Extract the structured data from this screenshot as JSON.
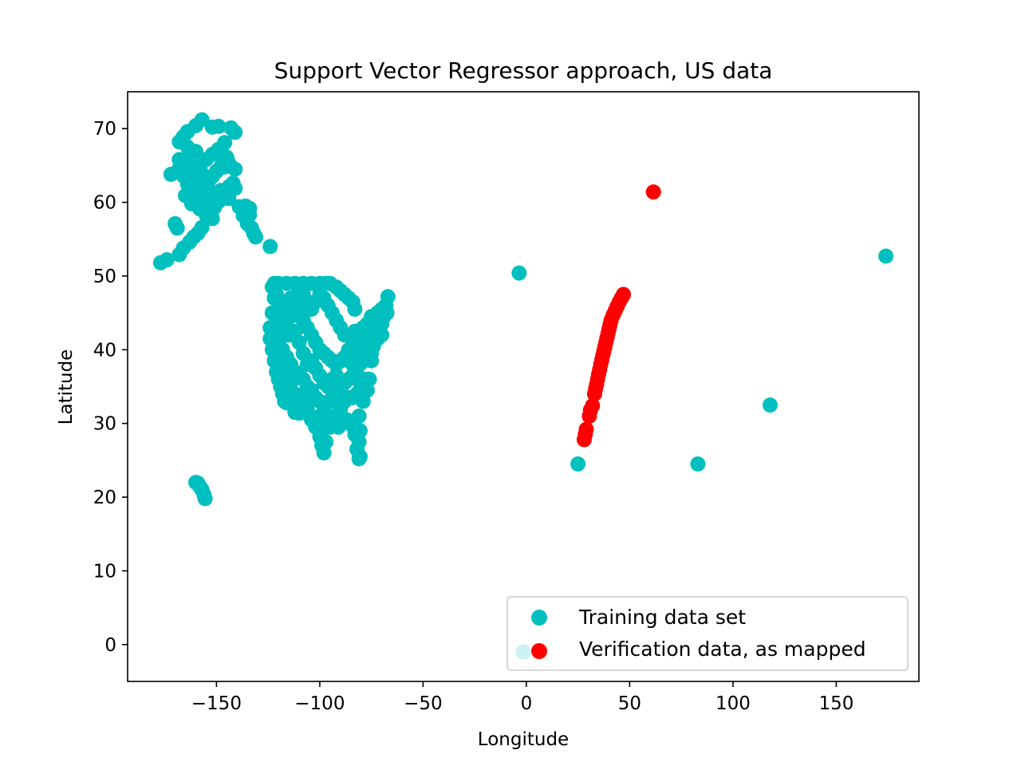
{
  "chart_data": {
    "type": "scatter",
    "title": "Support Vector Regressor approach, US data",
    "xlabel": "Longitude",
    "ylabel": "Latitude",
    "xlim": [
      -193,
      190
    ],
    "ylim": [
      -5,
      75
    ],
    "xticks": [
      -150,
      -100,
      -50,
      0,
      50,
      100,
      150
    ],
    "xtick_labels": [
      "−150",
      "−100",
      "−50",
      "0",
      "50",
      "100",
      "150"
    ],
    "yticks": [
      0,
      10,
      20,
      30,
      40,
      50,
      60,
      70
    ],
    "ytick_labels": [
      "0",
      "10",
      "20",
      "30",
      "40",
      "50",
      "60",
      "70"
    ],
    "grid": false,
    "legend_position": "lower-right",
    "series": [
      {
        "name": "Training data set",
        "color": "#00bfbf",
        "points": [
          [
            -177,
            51.8
          ],
          [
            -174,
            52.2
          ],
          [
            -168,
            52.9
          ],
          [
            -166,
            53.8
          ],
          [
            -163,
            54.6
          ],
          [
            -161,
            55.3
          ],
          [
            -159,
            55.8
          ],
          [
            -157,
            56.6
          ],
          [
            -170,
            57.1
          ],
          [
            -169,
            56.5
          ],
          [
            -172,
            63.8
          ],
          [
            -168,
            64.6
          ],
          [
            -165,
            64.5
          ],
          [
            -168,
            68.2
          ],
          [
            -166,
            68.9
          ],
          [
            -164,
            69.6
          ],
          [
            -160,
            70.4
          ],
          [
            -157,
            71.2
          ],
          [
            -152,
            70.2
          ],
          [
            -149,
            70.3
          ],
          [
            -143,
            70.1
          ],
          [
            -146,
            68.1
          ],
          [
            -141,
            69.5
          ],
          [
            -160,
            66.9
          ],
          [
            -162,
            66.3
          ],
          [
            -164,
            67.5
          ],
          [
            -166,
            65.5
          ],
          [
            -168,
            65.8
          ],
          [
            -163,
            64.1
          ],
          [
            -161,
            63.3
          ],
          [
            -158,
            62.5
          ],
          [
            -156,
            61.1
          ],
          [
            -160,
            60.3
          ],
          [
            -162,
            59.8
          ],
          [
            -158,
            59.1
          ],
          [
            -155,
            58.3
          ],
          [
            -152,
            57.8
          ],
          [
            -154,
            59.5
          ],
          [
            -152,
            60.5
          ],
          [
            -150,
            61.2
          ],
          [
            -148,
            61.6
          ],
          [
            -146,
            61.1
          ],
          [
            -144,
            60.5
          ],
          [
            -142,
            62.6
          ],
          [
            -141,
            64.5
          ],
          [
            -144,
            65.3
          ],
          [
            -146,
            64.8
          ],
          [
            -148,
            64.8
          ],
          [
            -150,
            64.2
          ],
          [
            -152,
            63.5
          ],
          [
            -154,
            62.8
          ],
          [
            -156,
            63.6
          ],
          [
            -158,
            64.7
          ],
          [
            -155,
            65.8
          ],
          [
            -152,
            66.5
          ],
          [
            -149,
            67.2
          ],
          [
            -147,
            66.5
          ],
          [
            -145,
            66.1
          ],
          [
            -162,
            61.8
          ],
          [
            -164,
            62.5
          ],
          [
            -165,
            60.9
          ],
          [
            -163,
            63.2
          ],
          [
            -166,
            63.6
          ],
          [
            -161,
            64.9
          ],
          [
            -159,
            63.9
          ],
          [
            -157,
            62.6
          ],
          [
            -155,
            61.8
          ],
          [
            -153,
            60.1
          ],
          [
            -151,
            59.3
          ],
          [
            -149,
            60.1
          ],
          [
            -147,
            60.6
          ],
          [
            -144,
            62.1
          ],
          [
            -141,
            61.9
          ],
          [
            -139,
            59.4
          ],
          [
            -137,
            58.2
          ],
          [
            -135,
            57.1
          ],
          [
            -134,
            58.3
          ],
          [
            -133,
            56.5
          ],
          [
            -132,
            55.8
          ],
          [
            -131,
            55.3
          ],
          [
            -136,
            59.5
          ],
          [
            -134,
            59.2
          ],
          [
            -124,
            54.0
          ],
          [
            -155.5,
            19.8
          ],
          [
            -156,
            20.3
          ],
          [
            -157,
            21.0
          ],
          [
            -158,
            21.4
          ],
          [
            -159,
            21.9
          ],
          [
            -160,
            22.0
          ],
          [
            -123,
            48.5
          ],
          [
            -122,
            47.0
          ],
          [
            -123,
            45.0
          ],
          [
            -124,
            43.0
          ],
          [
            -124,
            41.5
          ],
          [
            -123,
            40.0
          ],
          [
            -122,
            38.5
          ],
          [
            -121,
            37.0
          ],
          [
            -120,
            36.0
          ],
          [
            -119,
            35.0
          ],
          [
            -118,
            34.0
          ],
          [
            -117,
            33.0
          ],
          [
            -116,
            32.8
          ],
          [
            -114,
            32.7
          ],
          [
            -112,
            31.5
          ],
          [
            -110,
            31.4
          ],
          [
            -108,
            31.5
          ],
          [
            -106,
            31.8
          ],
          [
            -104,
            30.5
          ],
          [
            -102,
            29.5
          ],
          [
            -100,
            28.2
          ],
          [
            -99,
            27.0
          ],
          [
            -98,
            26.0
          ],
          [
            -97,
            27.5
          ],
          [
            -95,
            29.5
          ],
          [
            -93,
            29.8
          ],
          [
            -91,
            29.5
          ],
          [
            -89,
            30.2
          ],
          [
            -87,
            30.5
          ],
          [
            -85,
            29.9
          ],
          [
            -84,
            30.2
          ],
          [
            -83,
            28.5
          ],
          [
            -82,
            26.5
          ],
          [
            -81,
            25.2
          ],
          [
            -80.5,
            25.5
          ],
          [
            -81,
            27.5
          ],
          [
            -80.5,
            29.0
          ],
          [
            -81,
            31.0
          ],
          [
            -79,
            33.0
          ],
          [
            -77,
            34.5
          ],
          [
            -76,
            36.0
          ],
          [
            -75,
            38.5
          ],
          [
            -74,
            40.5
          ],
          [
            -72,
            41.5
          ],
          [
            -70,
            42.0
          ],
          [
            -70,
            43.5
          ],
          [
            -69,
            44.5
          ],
          [
            -68,
            46.0
          ],
          [
            -67,
            47.2
          ],
          [
            -67.5,
            45.0
          ],
          [
            -70,
            45.5
          ],
          [
            -72,
            45.0
          ],
          [
            -75,
            44.5
          ],
          [
            -77,
            43.5
          ],
          [
            -79,
            43.0
          ],
          [
            -79,
            42.5
          ],
          [
            -80,
            42.0
          ],
          [
            -82,
            41.8
          ],
          [
            -83,
            42.5
          ],
          [
            -83,
            45.5
          ],
          [
            -84,
            46.5
          ],
          [
            -86,
            47.0
          ],
          [
            -88,
            47.5
          ],
          [
            -90,
            48.0
          ],
          [
            -92,
            48.5
          ],
          [
            -95,
            49.0
          ],
          [
            -97,
            49.0
          ],
          [
            -100,
            49.0
          ],
          [
            -104,
            49.0
          ],
          [
            -108,
            49.0
          ],
          [
            -112,
            49.0
          ],
          [
            -116,
            49.0
          ],
          [
            -120,
            49.0
          ],
          [
            -122,
            49.0
          ],
          [
            -75,
            39.5
          ],
          [
            -77,
            38.8
          ],
          [
            -80,
            38.2
          ],
          [
            -82,
            37.5
          ],
          [
            -84,
            36.5
          ],
          [
            -86,
            36.0
          ],
          [
            -88,
            35.5
          ],
          [
            -90,
            35.0
          ],
          [
            -92,
            34.5
          ],
          [
            -94,
            33.5
          ],
          [
            -96,
            32.8
          ],
          [
            -98,
            32.5
          ],
          [
            -100,
            33.0
          ],
          [
            -102,
            33.5
          ],
          [
            -104,
            34.5
          ],
          [
            -106,
            35.0
          ],
          [
            -108,
            36.0
          ],
          [
            -110,
            36.5
          ],
          [
            -112,
            37.0
          ],
          [
            -114,
            38.0
          ],
          [
            -116,
            39.0
          ],
          [
            -118,
            40.0
          ],
          [
            -120,
            41.0
          ],
          [
            -121,
            42.5
          ],
          [
            -120,
            44.0
          ],
          [
            -118,
            45.5
          ],
          [
            -116,
            46.5
          ],
          [
            -114,
            47.0
          ],
          [
            -112,
            46.0
          ],
          [
            -110,
            45.0
          ],
          [
            -108,
            44.0
          ],
          [
            -106,
            43.0
          ],
          [
            -104,
            42.0
          ],
          [
            -102,
            41.0
          ],
          [
            -100,
            40.0
          ],
          [
            -98,
            39.5
          ],
          [
            -96,
            39.0
          ],
          [
            -94,
            38.5
          ],
          [
            -92,
            38.0
          ],
          [
            -90,
            38.5
          ],
          [
            -88,
            39.0
          ],
          [
            -86,
            40.0
          ],
          [
            -84,
            40.5
          ],
          [
            -82,
            40.0
          ],
          [
            -80,
            40.5
          ],
          [
            -78,
            41.0
          ],
          [
            -76,
            42.0
          ],
          [
            -74,
            43.0
          ],
          [
            -72,
            43.5
          ],
          [
            -88,
            42.0
          ],
          [
            -90,
            43.0
          ],
          [
            -92,
            44.0
          ],
          [
            -94,
            45.0
          ],
          [
            -96,
            46.0
          ],
          [
            -98,
            47.0
          ],
          [
            -100,
            47.5
          ],
          [
            -102,
            46.5
          ],
          [
            -104,
            45.5
          ],
          [
            -106,
            46.5
          ],
          [
            -108,
            47.5
          ],
          [
            -110,
            48.0
          ],
          [
            -114,
            44.5
          ],
          [
            -112,
            42.5
          ],
          [
            -110,
            41.0
          ],
          [
            -108,
            39.5
          ],
          [
            -106,
            38.0
          ],
          [
            -104,
            38.5
          ],
          [
            -102,
            37.5
          ],
          [
            -100,
            36.5
          ],
          [
            -98,
            35.5
          ],
          [
            -96,
            35.0
          ],
          [
            -94,
            36.0
          ],
          [
            -92,
            36.5
          ],
          [
            -90,
            32.0
          ],
          [
            -92,
            31.0
          ],
          [
            -94,
            30.5
          ],
          [
            -96,
            31.0
          ],
          [
            -98,
            30.0
          ],
          [
            -100,
            31.0
          ],
          [
            -88,
            33.0
          ],
          [
            -86,
            33.5
          ],
          [
            -84,
            33.5
          ],
          [
            -82,
            34.0
          ],
          [
            -80,
            35.0
          ],
          [
            -78,
            36.0
          ],
          [
            -84,
            38.0
          ],
          [
            -86,
            38.5
          ],
          [
            -118,
            36.5
          ],
          [
            -120,
            38.0
          ],
          [
            -116,
            36.0
          ],
          [
            -114,
            35.5
          ],
          [
            -112,
            34.0
          ],
          [
            -110,
            33.5
          ],
          [
            -108,
            33.0
          ],
          [
            -106,
            32.5
          ],
          [
            -115,
            42.0
          ],
          [
            -117,
            43.5
          ],
          [
            -119,
            46.5
          ],
          [
            -121,
            47.5
          ],
          [
            -3.5,
            50.4
          ],
          [
            25,
            24.5
          ],
          [
            83,
            24.5
          ],
          [
            118,
            32.5
          ],
          [
            174,
            52.7
          ],
          [
            -1.5,
            -1.0
          ]
        ]
      },
      {
        "name": "Verification data, as mapped",
        "color": "#ff0000",
        "points": [
          [
            28,
            27.8
          ],
          [
            28.5,
            28.5
          ],
          [
            29,
            29.2
          ],
          [
            30.5,
            31.0
          ],
          [
            31,
            31.8
          ],
          [
            32,
            32.4
          ],
          [
            33,
            34.0
          ],
          [
            33.5,
            34.7
          ],
          [
            34,
            35.3
          ],
          [
            34.5,
            36.0
          ],
          [
            35,
            36.7
          ],
          [
            35.5,
            37.3
          ],
          [
            36,
            38.0
          ],
          [
            36.5,
            38.6
          ],
          [
            37,
            39.2
          ],
          [
            37.5,
            39.8
          ],
          [
            38,
            40.4
          ],
          [
            38.5,
            41.0
          ],
          [
            39,
            41.6
          ],
          [
            39.5,
            42.2
          ],
          [
            40,
            42.8
          ],
          [
            40.5,
            43.4
          ],
          [
            41,
            44.0
          ],
          [
            42,
            44.7
          ],
          [
            43,
            45.3
          ],
          [
            44,
            45.9
          ],
          [
            45,
            46.5
          ],
          [
            46,
            47.0
          ],
          [
            47,
            47.5
          ],
          [
            61.5,
            61.4
          ]
        ]
      }
    ]
  }
}
